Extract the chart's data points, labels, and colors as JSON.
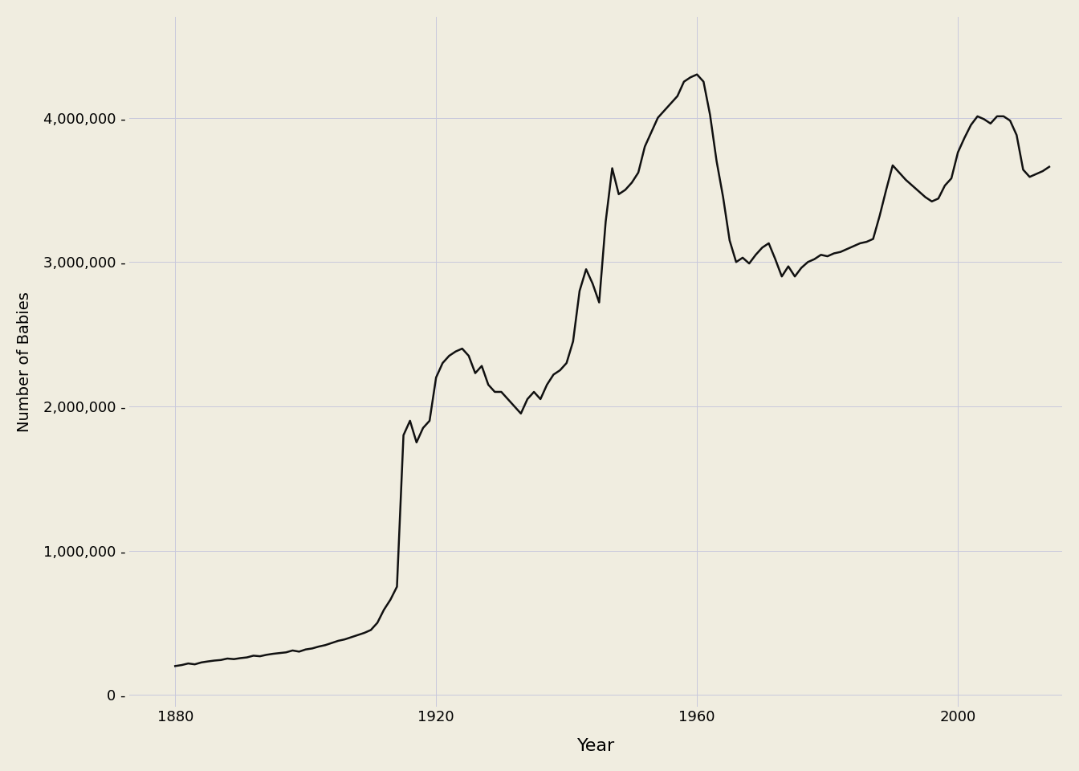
{
  "title": "",
  "xlabel": "Year",
  "ylabel": "Number of Babies",
  "background_color": "#f0ede0",
  "line_color": "#111111",
  "line_width": 1.8,
  "grid_color": "#c8c8dc",
  "years": [
    1880,
    1881,
    1882,
    1883,
    1884,
    1885,
    1886,
    1887,
    1888,
    1889,
    1890,
    1891,
    1892,
    1893,
    1894,
    1895,
    1896,
    1897,
    1898,
    1899,
    1900,
    1901,
    1902,
    1903,
    1904,
    1905,
    1906,
    1907,
    1908,
    1909,
    1910,
    1911,
    1912,
    1913,
    1914,
    1915,
    1916,
    1917,
    1918,
    1919,
    1920,
    1921,
    1922,
    1923,
    1924,
    1925,
    1926,
    1927,
    1928,
    1929,
    1930,
    1931,
    1932,
    1933,
    1934,
    1935,
    1936,
    1937,
    1938,
    1939,
    1940,
    1941,
    1942,
    1943,
    1944,
    1945,
    1946,
    1947,
    1948,
    1949,
    1950,
    1951,
    1952,
    1953,
    1954,
    1955,
    1956,
    1957,
    1958,
    1959,
    1960,
    1961,
    1962,
    1963,
    1964,
    1965,
    1966,
    1967,
    1968,
    1969,
    1970,
    1971,
    1972,
    1973,
    1974,
    1975,
    1976,
    1977,
    1978,
    1979,
    1980,
    1981,
    1982,
    1983,
    1984,
    1985,
    1986,
    1987,
    1988,
    1989,
    1990,
    1991,
    1992,
    1993,
    1994,
    1995,
    1996,
    1997,
    1998,
    1999,
    2000,
    2001,
    2002,
    2003,
    2004,
    2005,
    2006,
    2007,
    2008,
    2009,
    2010,
    2011,
    2012,
    2013,
    2014
  ],
  "values": [
    200000,
    207000,
    218000,
    212000,
    225000,
    232000,
    238000,
    242000,
    252000,
    248000,
    255000,
    260000,
    272000,
    268000,
    278000,
    285000,
    290000,
    295000,
    308000,
    300000,
    315000,
    322000,
    335000,
    345000,
    360000,
    375000,
    385000,
    400000,
    415000,
    430000,
    450000,
    500000,
    590000,
    660000,
    750000,
    1800000,
    1900000,
    1750000,
    1850000,
    1900000,
    2200000,
    2300000,
    2350000,
    2380000,
    2400000,
    2350000,
    2230000,
    2280000,
    2150000,
    2100000,
    2100000,
    2050000,
    2000000,
    1950000,
    2050000,
    2100000,
    2050000,
    2150000,
    2220000,
    2250000,
    2300000,
    2450000,
    2800000,
    2950000,
    2850000,
    2720000,
    3280000,
    3650000,
    3470000,
    3500000,
    3550000,
    3620000,
    3800000,
    3900000,
    4000000,
    4050000,
    4100000,
    4150000,
    4250000,
    4280000,
    4300000,
    4250000,
    4020000,
    3700000,
    3450000,
    3150000,
    3000000,
    3030000,
    2990000,
    3050000,
    3100000,
    3130000,
    3020000,
    2900000,
    2970000,
    2900000,
    2960000,
    3000000,
    3020000,
    3050000,
    3040000,
    3060000,
    3070000,
    3090000,
    3110000,
    3130000,
    3140000,
    3160000,
    3320000,
    3500000,
    3670000,
    3620000,
    3570000,
    3530000,
    3490000,
    3450000,
    3420000,
    3440000,
    3530000,
    3580000,
    3760000,
    3860000,
    3950000,
    4010000,
    3990000,
    3960000,
    4010000,
    4010000,
    3980000,
    3880000,
    3640000,
    3590000,
    3610000,
    3630000,
    3660000
  ]
}
